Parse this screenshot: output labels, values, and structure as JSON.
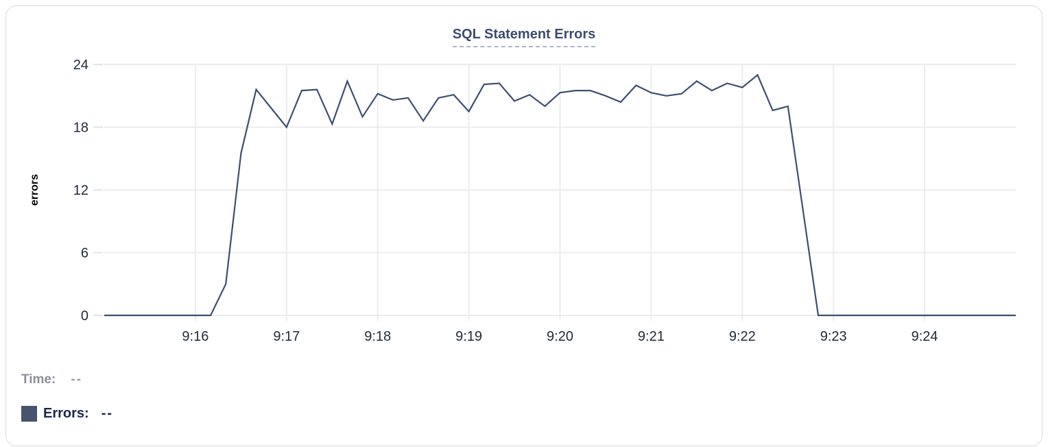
{
  "chart_data": {
    "type": "line",
    "title": "SQL Statement Errors",
    "ylabel": "errors",
    "ylim": [
      0,
      24
    ],
    "y_ticks": [
      0,
      6,
      12,
      18,
      24
    ],
    "x_ticks": [
      "9:16",
      "9:17",
      "9:18",
      "9:19",
      "9:20",
      "9:21",
      "9:22",
      "9:23",
      "9:24"
    ],
    "x_domain": [
      "9:15:00",
      "9:25:00"
    ],
    "grid": true,
    "legend_position": "none",
    "line_color": "#3e4e6f",
    "grid_color": "#ececec",
    "tick_color": "#e3e3e3",
    "tick_label_color": "#1f2937",
    "series": [
      {
        "name": "Errors",
        "points": [
          [
            "9:15:00",
            0
          ],
          [
            "9:15:10",
            0
          ],
          [
            "9:15:20",
            0
          ],
          [
            "9:15:30",
            0
          ],
          [
            "9:15:40",
            0
          ],
          [
            "9:15:50",
            0
          ],
          [
            "9:16:00",
            0
          ],
          [
            "9:16:10",
            0
          ],
          [
            "9:16:20",
            3
          ],
          [
            "9:16:30",
            15.5
          ],
          [
            "9:16:40",
            21.6
          ],
          [
            "9:16:50",
            19.8
          ],
          [
            "9:17:00",
            18
          ],
          [
            "9:17:10",
            21.5
          ],
          [
            "9:17:20",
            21.6
          ],
          [
            "9:17:30",
            18.3
          ],
          [
            "9:17:40",
            22.4
          ],
          [
            "9:17:50",
            19
          ],
          [
            "9:18:00",
            21.2
          ],
          [
            "9:18:10",
            20.6
          ],
          [
            "9:18:20",
            20.8
          ],
          [
            "9:18:30",
            18.6
          ],
          [
            "9:18:40",
            20.8
          ],
          [
            "9:18:50",
            21.1
          ],
          [
            "9:19:00",
            19.5
          ],
          [
            "9:19:10",
            22.1
          ],
          [
            "9:19:20",
            22.2
          ],
          [
            "9:19:30",
            20.5
          ],
          [
            "9:19:40",
            21.1
          ],
          [
            "9:19:50",
            20
          ],
          [
            "9:20:00",
            21.3
          ],
          [
            "9:20:10",
            21.5
          ],
          [
            "9:20:20",
            21.5
          ],
          [
            "9:20:30",
            21
          ],
          [
            "9:20:40",
            20.4
          ],
          [
            "9:20:50",
            22
          ],
          [
            "9:21:00",
            21.3
          ],
          [
            "9:21:10",
            21
          ],
          [
            "9:21:20",
            21.2
          ],
          [
            "9:21:30",
            22.4
          ],
          [
            "9:21:40",
            21.5
          ],
          [
            "9:21:50",
            22.2
          ],
          [
            "9:22:00",
            21.8
          ],
          [
            "9:22:10",
            23
          ],
          [
            "9:22:20",
            19.6
          ],
          [
            "9:22:30",
            20
          ],
          [
            "9:22:40",
            10
          ],
          [
            "9:22:50",
            0
          ],
          [
            "9:23:00",
            0
          ],
          [
            "9:23:10",
            0
          ],
          [
            "9:23:20",
            0
          ],
          [
            "9:23:30",
            0
          ],
          [
            "9:23:40",
            0
          ],
          [
            "9:23:50",
            0
          ],
          [
            "9:24:00",
            0
          ],
          [
            "9:24:10",
            0
          ],
          [
            "9:24:20",
            0
          ],
          [
            "9:24:30",
            0
          ],
          [
            "9:24:40",
            0
          ],
          [
            "9:24:50",
            0
          ],
          [
            "9:25:00",
            0
          ]
        ]
      }
    ]
  },
  "hover_readout": {
    "time_label": "Time:",
    "time_value": "--",
    "errors_label": "Errors:",
    "errors_value": "--",
    "errors_swatch_color": "#47536f"
  }
}
